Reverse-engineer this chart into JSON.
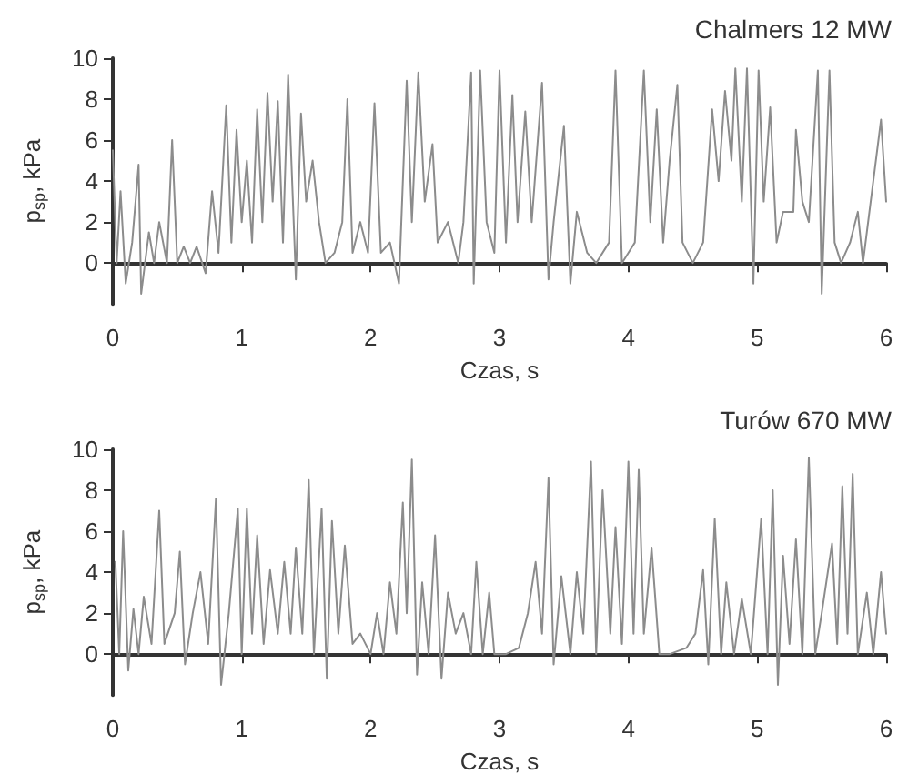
{
  "chart_data": [
    {
      "type": "line",
      "title": "Chalmers 12 MW",
      "xlabel": "Czas, s",
      "ylabel": "p$_{sp}$, kPa",
      "xlim": [
        0,
        6
      ],
      "xticks": [
        0,
        1,
        2,
        3,
        4,
        5,
        6
      ],
      "ylim": [
        -2,
        10
      ],
      "yticks": [
        0,
        2,
        4,
        6,
        8,
        10
      ],
      "grid": false,
      "marker": "none",
      "line_style": "solid",
      "series": [
        {
          "color": "#8c8c8c",
          "x": [
            0,
            0.03,
            0.06,
            0.1,
            0.15,
            0.2,
            0.22,
            0.28,
            0.32,
            0.36,
            0.42,
            0.46,
            0.5,
            0.55,
            0.6,
            0.65,
            0.72,
            0.77,
            0.82,
            0.88,
            0.92,
            0.96,
            1.0,
            1.04,
            1.08,
            1.12,
            1.16,
            1.2,
            1.24,
            1.28,
            1.32,
            1.36,
            1.42,
            1.46,
            1.5,
            1.55,
            1.6,
            1.65,
            1.72,
            1.78,
            1.82,
            1.86,
            1.92,
            1.98,
            2.03,
            2.08,
            2.15,
            2.22,
            2.28,
            2.32,
            2.37,
            2.42,
            2.48,
            2.52,
            2.6,
            2.68,
            2.72,
            2.78,
            2.8,
            2.85,
            2.9,
            2.96,
            3.0,
            3.05,
            3.1,
            3.14,
            3.2,
            3.25,
            3.33,
            3.38,
            3.42,
            3.5,
            3.55,
            3.6,
            3.68,
            3.75,
            3.85,
            3.9,
            3.95,
            4.0,
            4.05,
            4.12,
            4.17,
            4.22,
            4.27,
            4.32,
            4.38,
            4.42,
            4.5,
            4.58,
            4.65,
            4.7,
            4.75,
            4.8,
            4.83,
            4.88,
            4.92,
            4.97,
            5.01,
            5.05,
            5.1,
            5.15,
            5.2,
            5.28,
            5.3,
            5.35,
            5.4,
            5.47,
            5.5,
            5.56,
            5.6,
            5.65,
            5.72,
            5.78,
            5.82,
            5.9,
            5.96,
            6.0
          ],
          "values": [
            5.5,
            0,
            3.5,
            -1,
            1,
            4.8,
            -1.5,
            1.5,
            0,
            2,
            0,
            6,
            0,
            0.8,
            0,
            0.8,
            -0.5,
            3.5,
            0.5,
            7.7,
            1,
            6.5,
            2,
            5,
            1,
            7.5,
            2,
            8.3,
            3,
            7.9,
            1,
            9.2,
            -0.8,
            7.3,
            3,
            5,
            2,
            0,
            0.5,
            2,
            8,
            0.5,
            2,
            0.5,
            7.8,
            0.5,
            1,
            -1,
            8.9,
            2,
            9.3,
            3,
            5.8,
            1,
            2,
            0,
            2,
            9.3,
            -1,
            9.4,
            2,
            0.5,
            9.4,
            1,
            8.2,
            2,
            7.4,
            2,
            8.8,
            -0.8,
            2,
            6.7,
            -1,
            2.5,
            0.5,
            0,
            1,
            9.4,
            0,
            0.5,
            1,
            9.4,
            2,
            7.5,
            1,
            5,
            8.7,
            1,
            0,
            1,
            7.5,
            4,
            8.4,
            5,
            9.5,
            3,
            9.5,
            -1,
            9.4,
            3,
            7.6,
            1,
            2.5,
            2.5,
            6.5,
            3,
            2,
            9.4,
            -1.5,
            9.4,
            1,
            0,
            1,
            2.5,
            0,
            4,
            7,
            3
          ]
        }
      ]
    },
    {
      "type": "line",
      "title": "Turów 670 MW",
      "xlabel": "Czas, s",
      "ylabel": "p$_{sp}$, kPa",
      "xlim": [
        0,
        6
      ],
      "xticks": [
        0,
        1,
        2,
        3,
        4,
        5,
        6
      ],
      "ylim": [
        -2,
        10
      ],
      "yticks": [
        0,
        2,
        4,
        6,
        8,
        10
      ],
      "grid": false,
      "marker": "none",
      "line_style": "solid",
      "series": [
        {
          "color": "#8c8c8c",
          "x": [
            0.02,
            0.05,
            0.08,
            0.12,
            0.16,
            0.2,
            0.24,
            0.3,
            0.36,
            0.4,
            0.48,
            0.52,
            0.56,
            0.62,
            0.68,
            0.74,
            0.8,
            0.84,
            0.9,
            0.97,
            1.0,
            1.04,
            1.08,
            1.12,
            1.17,
            1.22,
            1.28,
            1.33,
            1.38,
            1.42,
            1.47,
            1.52,
            1.56,
            1.62,
            1.66,
            1.7,
            1.75,
            1.8,
            1.86,
            1.92,
            2.0,
            2.05,
            2.1,
            2.15,
            2.2,
            2.25,
            2.28,
            2.32,
            2.36,
            2.4,
            2.45,
            2.5,
            2.55,
            2.6,
            2.66,
            2.72,
            2.78,
            2.82,
            2.87,
            2.92,
            2.96,
            3.05,
            3.15,
            3.22,
            3.28,
            3.33,
            3.38,
            3.42,
            3.48,
            3.55,
            3.6,
            3.65,
            3.71,
            3.75,
            3.8,
            3.86,
            3.9,
            3.95,
            4.0,
            4.04,
            4.08,
            4.12,
            4.18,
            4.24,
            4.32,
            4.45,
            4.52,
            4.58,
            4.62,
            4.67,
            4.72,
            4.76,
            4.82,
            4.88,
            4.95,
            5.03,
            5.08,
            5.12,
            5.16,
            5.2,
            5.25,
            5.3,
            5.35,
            5.4,
            5.45,
            5.5,
            5.58,
            5.62,
            5.66,
            5.7,
            5.74,
            5.78,
            5.85,
            5.9,
            5.96,
            6.0
          ],
          "values": [
            4.5,
            0,
            6,
            -0.8,
            2.2,
            0,
            2.8,
            0.5,
            7,
            0.5,
            2,
            5,
            -0.5,
            2,
            4,
            0.5,
            7.6,
            -1.5,
            2,
            7.1,
            0,
            7.1,
            1,
            5.8,
            0.5,
            4.1,
            1,
            4.5,
            1,
            5.2,
            1,
            8.5,
            0,
            7.1,
            -1.2,
            6.5,
            1,
            5.3,
            0.5,
            1,
            0,
            2,
            0,
            3.5,
            1,
            7.4,
            2,
            9.5,
            -1,
            3.5,
            0,
            5.8,
            -1.2,
            3,
            1,
            2,
            0,
            4.5,
            0,
            3,
            0,
            0,
            0.3,
            2,
            4.5,
            1,
            8.6,
            -0.5,
            3.8,
            0,
            4,
            1,
            9.4,
            0,
            8,
            1,
            6.2,
            0.5,
            9.4,
            1,
            9,
            1,
            5.2,
            0,
            0,
            0.3,
            1,
            4.1,
            -0.5,
            6.6,
            0,
            3.5,
            0,
            2.7,
            0,
            6.6,
            0,
            8,
            -1.5,
            4.8,
            0.5,
            5.6,
            0,
            9.6,
            0,
            2,
            5.4,
            0.5,
            8.2,
            1,
            8.8,
            0,
            3,
            0,
            4,
            1
          ]
        }
      ]
    }
  ]
}
